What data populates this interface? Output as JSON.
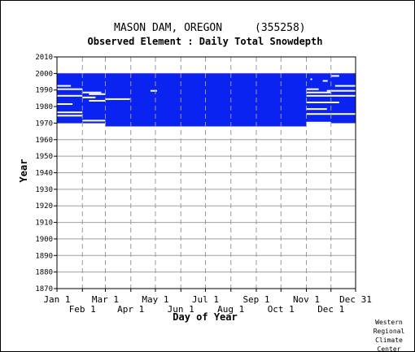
{
  "chart_data": {
    "type": "heatmap",
    "title": "MASON DAM, OREGON",
    "station_id": "(355258)",
    "subtitle": "Observed Element : Daily Total Snowdepth",
    "xlabel": "Day of Year",
    "ylabel": "Year",
    "xlim": [
      1,
      365
    ],
    "ylim": [
      1870,
      2010
    ],
    "y_ticks": [
      1870,
      1880,
      1890,
      1900,
      1910,
      1920,
      1930,
      1940,
      1950,
      1960,
      1970,
      1980,
      1990,
      2000,
      2010
    ],
    "x_ticks_upper": [
      {
        "label": "Jan 1",
        "day": 1
      },
      {
        "label": "Mar 1",
        "day": 60
      },
      {
        "label": "May 1",
        "day": 121
      },
      {
        "label": "Jul 1",
        "day": 182
      },
      {
        "label": "Sep 1",
        "day": 244
      },
      {
        "label": "Nov 1",
        "day": 305
      },
      {
        "label": "Dec 31",
        "day": 365
      }
    ],
    "x_ticks_lower": [
      {
        "label": "Feb 1",
        "day": 32
      },
      {
        "label": "Apr 1",
        "day": 91
      },
      {
        "label": "Jun 1",
        "day": 152
      },
      {
        "label": "Aug 1",
        "day": 213
      },
      {
        "label": "Oct 1",
        "day": 274
      },
      {
        "label": "Dec 1",
        "day": 335
      }
    ],
    "grid": true,
    "fill_color": "#0a23f0",
    "observed_blocks": [
      {
        "day_start": 1,
        "day_end": 60,
        "year_start": 1970,
        "year_end": 2000
      },
      {
        "day_start": 60,
        "day_end": 305,
        "year_start": 1968,
        "year_end": 2000
      },
      {
        "day_start": 305,
        "day_end": 365,
        "year_start": 1970,
        "year_end": 2000
      }
    ],
    "missing_segments": [
      {
        "year": 1971.5,
        "day_start": 32,
        "day_end": 60
      },
      {
        "year": 1970.3,
        "day_start": 305,
        "day_end": 335
      },
      {
        "year": 1969.4,
        "day_start": 335,
        "day_end": 365
      },
      {
        "year": 1974.5,
        "day_start": 1,
        "day_end": 32
      },
      {
        "year": 1976.5,
        "day_start": 1,
        "day_end": 32
      },
      {
        "year": 1975.5,
        "day_start": 305,
        "day_end": 365
      },
      {
        "year": 1978.5,
        "day_start": 305,
        "day_end": 330
      },
      {
        "year": 1981.5,
        "day_start": 1,
        "day_end": 20
      },
      {
        "year": 1982.5,
        "day_start": 305,
        "day_end": 345
      },
      {
        "year": 1983.5,
        "day_start": 40,
        "day_end": 60
      },
      {
        "year": 1984.5,
        "day_start": 60,
        "day_end": 90
      },
      {
        "year": 1985.5,
        "day_start": 32,
        "day_end": 48
      },
      {
        "year": 1986.5,
        "day_start": 1,
        "day_end": 32
      },
      {
        "year": 1986.5,
        "day_start": 305,
        "day_end": 365
      },
      {
        "year": 1987.5,
        "day_start": 40,
        "day_end": 60
      },
      {
        "year": 1988.5,
        "day_start": 32,
        "day_end": 55
      },
      {
        "year": 1988.5,
        "day_start": 305,
        "day_end": 335
      },
      {
        "year": 1989.5,
        "day_start": 115,
        "day_end": 123
      },
      {
        "year": 1989.5,
        "day_start": 330,
        "day_end": 365
      },
      {
        "year": 1990.5,
        "day_start": 1,
        "day_end": 32
      },
      {
        "year": 1990.5,
        "day_start": 305,
        "day_end": 320
      },
      {
        "year": 1992.5,
        "day_start": 1,
        "day_end": 18
      },
      {
        "year": 1992.5,
        "day_start": 340,
        "day_end": 365
      },
      {
        "year": 1995.5,
        "day_start": 325,
        "day_end": 331
      },
      {
        "year": 1996.5,
        "day_start": 310,
        "day_end": 312
      },
      {
        "year": 1998.5,
        "day_start": 335,
        "day_end": 345
      }
    ]
  },
  "credit": {
    "line1": "Western",
    "line2": "Regional",
    "line3": "Climate",
    "line4": "Center"
  }
}
